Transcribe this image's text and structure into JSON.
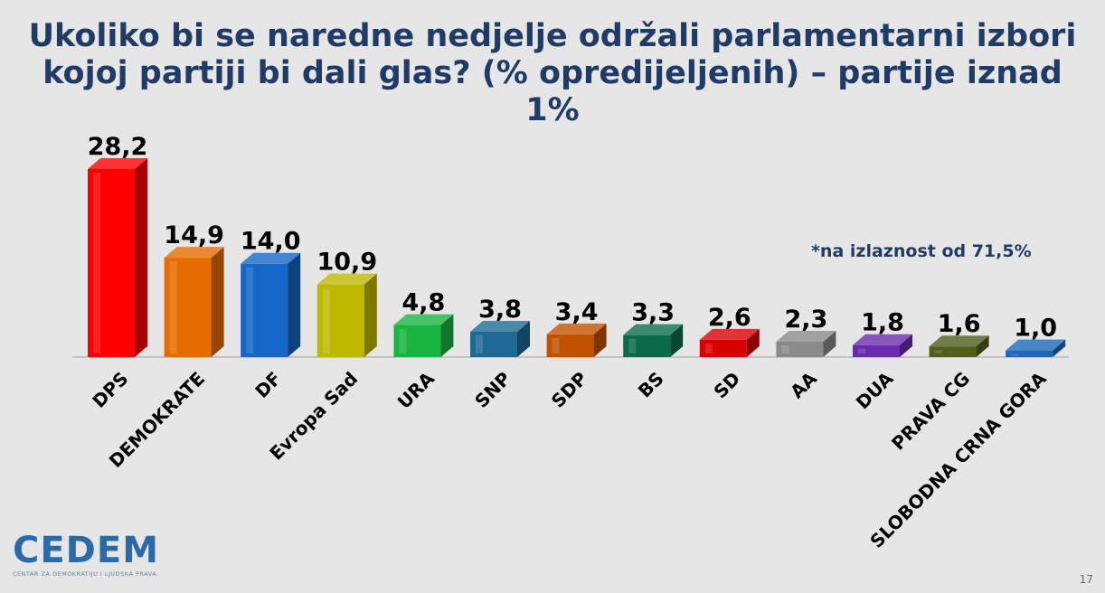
{
  "title_lines": [
    "Ukoliko bi se naredne nedjelje održali parlamentarni izbori",
    "kojoj partiji bi dali glas? (% opredijeljenih) – partije iznad",
    "1%"
  ],
  "note": "*na izlaznost od 71,5%",
  "logo": {
    "text": "CEDEM",
    "subtitle": "CENTAR ZA DEMOKRATIJU I LJUDSKA PRAVA"
  },
  "page_number": "17",
  "chart_data": {
    "type": "bar",
    "title": "Ukoliko bi se naredne nedjelje održali parlamentarni izbori kojoj partiji bi dali glas? (% opredijeljenih) – partije iznad 1%",
    "categories": [
      "DPS",
      "DEMOKRATE",
      "DF",
      "Evropa Sad",
      "URA",
      "SNP",
      "SDP",
      "BS",
      "SD",
      "AA",
      "DUA",
      "PRAVA CG",
      "SLOBODNA CRNA GORA"
    ],
    "values": [
      28.2,
      14.9,
      14.0,
      10.9,
      4.8,
      3.8,
      3.4,
      3.3,
      2.6,
      2.3,
      1.8,
      1.6,
      1.0
    ],
    "value_labels": [
      "28,2",
      "14,9",
      "14,0",
      "10,9",
      "4,8",
      "3,8",
      "3,4",
      "3,3",
      "2,6",
      "2,3",
      "1,8",
      "1,6",
      "1,0"
    ],
    "colors": [
      "#ff0000",
      "#e66c00",
      "#1466c8",
      "#bfb800",
      "#19b340",
      "#1f6a94",
      "#c25200",
      "#0a6b4a",
      "#d90000",
      "#8a8a8a",
      "#6a2aad",
      "#4f5e1c",
      "#1c68b8"
    ],
    "ylim": [
      0,
      30
    ],
    "grid": false,
    "legend": "none",
    "xlabel": "",
    "ylabel": ""
  }
}
